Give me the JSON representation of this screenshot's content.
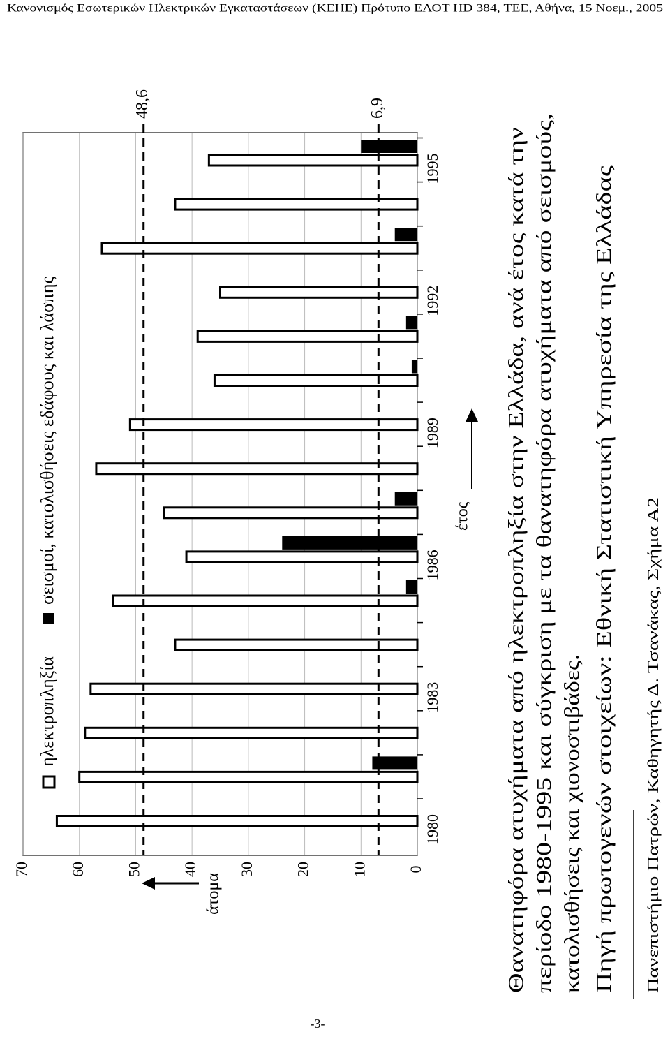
{
  "header": "Κανονισμός Εσωτερικών Ηλεκτρικών Εγκαταστάσεων (ΚΕΗΕ) Πρότυπο ΕΛΟΤ HD 384, ΤΕΕ, Αθήνα, 15 Νοεμ., 2005",
  "chart_data": {
    "type": "bar",
    "x_label": "έτος",
    "y_label": "άτομα",
    "categories": [
      "1980",
      null,
      null,
      "1983",
      null,
      null,
      "1986",
      null,
      null,
      "1989",
      null,
      null,
      "1992",
      null,
      null,
      "1995"
    ],
    "series": [
      {
        "name": "ηλεκτροπληξία",
        "color": "#ffffff",
        "values": [
          64,
          60,
          59,
          58,
          43,
          54,
          41,
          45,
          57,
          51,
          36,
          39,
          35,
          56,
          43,
          37
        ]
      },
      {
        "name": "σεισμοί, κατολισθήσεις εδάφους και λάσπης",
        "color": "#000000",
        "values": [
          0,
          8,
          0,
          0,
          0,
          2,
          24,
          4,
          0,
          0,
          1,
          2,
          0,
          4,
          0,
          10
        ]
      }
    ],
    "ylim": [
      0,
      70
    ],
    "yticks": [
      0,
      10,
      20,
      30,
      40,
      50,
      60,
      70
    ],
    "grid": true,
    "reference_lines": [
      {
        "value": 48.6,
        "label": "48,6"
      },
      {
        "value": 6.9,
        "label": "6,9"
      }
    ]
  },
  "caption": [
    "Θανατηφόρα ατυχήματα από ηλεκτροπληξία στην Ελλάδα, ανά έτος κατά την",
    "περίοδο 1980-1995 και σύγκριση με τα θανατηφόρα ατυχήματα από σεισμούς,",
    "κατολισθήσεις και χιονοστιβάδες.",
    "Πηγή πρωτογενών στοιχείων: Εθνική Στατιστική Υπηρεσία της Ελλάδας"
  ],
  "footer": "Πανεπιστήμιο Πατρών, Καθηγητής Δ. Τσανάκας, Σχήμα Α2",
  "page_number": "-3-"
}
